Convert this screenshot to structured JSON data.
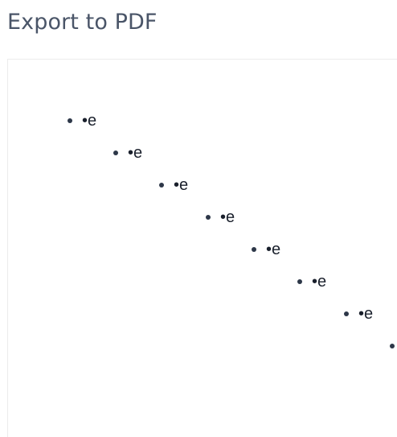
{
  "header": {
    "title": "Export to PDF"
  },
  "preview": {
    "items": [
      {
        "text": "•e"
      },
      {
        "text": "•e"
      },
      {
        "text": "•e"
      },
      {
        "text": "•e"
      },
      {
        "text": "•e"
      },
      {
        "text": "•e"
      },
      {
        "text": "•e"
      },
      {
        "text": ""
      }
    ]
  },
  "colors": {
    "title": "#4a5568",
    "bullet": "#2d3748",
    "text": "#1a202c",
    "frame_border": "#ececec"
  }
}
